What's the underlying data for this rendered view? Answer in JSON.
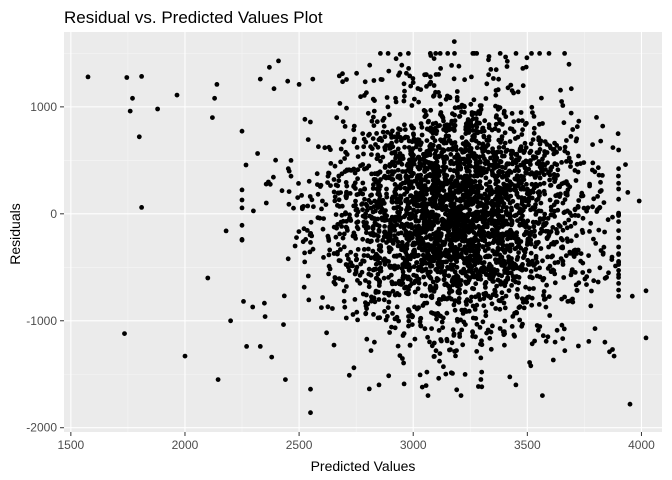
{
  "chart_data": {
    "type": "scatter",
    "title": "Residual vs. Predicted Values Plot",
    "xlabel": "Predicted Values",
    "ylabel": "Residuals",
    "xlim": [
      1470,
      4090
    ],
    "ylim": [
      -2040,
      1700
    ],
    "x_ticks": [
      1500,
      2000,
      2500,
      3000,
      3500,
      4000
    ],
    "y_ticks": [
      -2000,
      -1000,
      0,
      1000
    ],
    "x_tick_labels": [
      "1500",
      "2000",
      "2500",
      "3000",
      "3500",
      "4000"
    ],
    "y_tick_labels": [
      "-2000",
      "-1000",
      "0",
      "1000"
    ],
    "grid": true,
    "background": "#ebebeb",
    "grid_major_color": "#ffffff",
    "point_color": "#000000",
    "distribution": {
      "center_x": 3180,
      "center_residual": 0,
      "residual_sd": 540,
      "n_points_approx": 3500
    },
    "points": [
      [
        1575,
        1280
      ],
      [
        1745,
        1275
      ],
      [
        1810,
        1285
      ],
      [
        1770,
        1080
      ],
      [
        1760,
        960
      ],
      [
        1800,
        720
      ],
      [
        1810,
        60
      ],
      [
        1735,
        -1120
      ],
      [
        1880,
        980
      ],
      [
        1965,
        1110
      ],
      [
        2000,
        -1330
      ],
      [
        2100,
        -600
      ],
      [
        2140,
        1210
      ],
      [
        2130,
        1080
      ],
      [
        2120,
        900
      ],
      [
        2180,
        -160
      ],
      [
        2200,
        -1000
      ],
      [
        2145,
        -1550
      ],
      [
        2270,
        -1240
      ],
      [
        2330,
        1260
      ],
      [
        2370,
        1370
      ],
      [
        2410,
        1430
      ],
      [
        2390,
        1170
      ],
      [
        2450,
        1240
      ],
      [
        2500,
        1210
      ],
      [
        2560,
        1260
      ],
      [
        2550,
        -1640
      ],
      [
        2550,
        -1860
      ],
      [
        2440,
        -1550
      ],
      [
        2330,
        -1240
      ],
      [
        2380,
        -1340
      ],
      [
        2690,
        1310
      ],
      [
        2720,
        -1510
      ],
      [
        2740,
        -1440
      ],
      [
        2850,
        -1600
      ],
      [
        2960,
        -1590
      ],
      [
        2950,
        1390
      ],
      [
        2980,
        1360
      ],
      [
        3050,
        1300
      ],
      [
        3120,
        1360
      ],
      [
        3180,
        1610
      ],
      [
        3200,
        1380
      ],
      [
        3255,
        1280
      ],
      [
        3330,
        1440
      ],
      [
        3340,
        1350
      ],
      [
        3440,
        1130
      ],
      [
        3460,
        1140
      ],
      [
        3480,
        1360
      ],
      [
        3650,
        1050
      ],
      [
        3830,
        820
      ],
      [
        3930,
        460
      ],
      [
        3940,
        200
      ],
      [
        3990,
        120
      ],
      [
        3960,
        -770
      ],
      [
        4020,
        -720
      ],
      [
        3840,
        -1200
      ],
      [
        3860,
        -1290
      ],
      [
        3880,
        -1330
      ],
      [
        3950,
        -1780
      ],
      [
        4020,
        -1160
      ],
      [
        3570,
        -1140
      ],
      [
        3590,
        -1150
      ],
      [
        3510,
        -1390
      ],
      [
        3450,
        -1600
      ],
      [
        3040,
        -1620
      ],
      [
        3060,
        -1480
      ],
      [
        3300,
        -1480
      ],
      [
        3100,
        -1280
      ],
      [
        2960,
        -1120
      ],
      [
        2830,
        -1200
      ]
    ]
  }
}
